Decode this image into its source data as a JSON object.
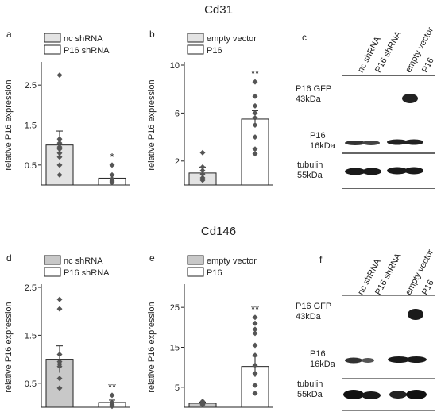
{
  "sections": [
    {
      "title": "Cd31"
    },
    {
      "title": "Cd146"
    }
  ],
  "chart_data": [
    {
      "panel": "a",
      "type": "bar",
      "ylabel": "relative P16 expression",
      "ylim": [
        0,
        3.0
      ],
      "yticks": [
        0.5,
        1.5,
        2.5
      ],
      "bar_fills": [
        "#e3e3e3",
        "#ffffff"
      ],
      "series": [
        {
          "name": "nc shRNA",
          "mean": 1.0,
          "error": 0.35,
          "points": [
            2.75,
            1.15,
            1.05,
            0.95,
            0.9,
            0.8,
            0.7,
            0.5,
            0.25
          ]
        },
        {
          "name": "P16 shRNA",
          "mean": 0.17,
          "error": 0.08,
          "points": [
            0.5,
            0.25,
            0.15,
            0.1,
            0.06
          ]
        }
      ],
      "significance": [
        "",
        "*"
      ]
    },
    {
      "panel": "b",
      "type": "bar",
      "ylabel": "relative P16 expression",
      "ylim": [
        0,
        10
      ],
      "yticks": [
        2,
        6,
        10
      ],
      "bar_fills": [
        "#e3e3e3",
        "#ffffff"
      ],
      "series": [
        {
          "name": "empty vector",
          "mean": 1.0,
          "error": 0.5,
          "points": [
            2.7,
            1.5,
            1.2,
            0.9,
            0.6,
            0.4
          ]
        },
        {
          "name": "P16",
          "mean": 5.5,
          "error": 0.7,
          "points": [
            8.6,
            7.4,
            6.6,
            6.0,
            5.6,
            5.0,
            4.0,
            3.0,
            2.6
          ]
        }
      ],
      "significance": [
        "",
        "**"
      ]
    },
    {
      "panel": "d",
      "type": "bar",
      "ylabel": "relative P16 expression",
      "ylim": [
        0,
        2.5
      ],
      "yticks": [
        0.5,
        1.5,
        2.5
      ],
      "bar_fills": [
        "#c8c8c8",
        "#ffffff"
      ],
      "series": [
        {
          "name": "nc shRNA",
          "mean": 1.0,
          "error": 0.28,
          "points": [
            2.25,
            2.05,
            1.1,
            0.95,
            0.9,
            0.85,
            0.6,
            0.4
          ]
        },
        {
          "name": "P16 shRNA",
          "mean": 0.1,
          "error": 0.05,
          "points": [
            0.25,
            0.1,
            0.05,
            0.02
          ]
        }
      ],
      "significance": [
        "",
        "**"
      ]
    },
    {
      "panel": "e",
      "type": "bar",
      "ylabel": "relative P16 expression",
      "ylim": [
        0,
        30
      ],
      "yticks": [
        5,
        15,
        25
      ],
      "bar_fills": [
        "#c8c8c8",
        "#ffffff"
      ],
      "series": [
        {
          "name": "empty vector",
          "mean": 1.0,
          "error": 0.3,
          "points": [
            1.5,
            1.2,
            1.0,
            0.8,
            0.6
          ]
        },
        {
          "name": "P16",
          "mean": 10.2,
          "error": 2.6,
          "points": [
            22.5,
            21.0,
            19.5,
            18.5,
            15.5,
            13.0,
            10.5,
            8.5,
            5.5,
            3.5
          ]
        }
      ],
      "significance": [
        "",
        "**"
      ]
    }
  ],
  "blots": [
    {
      "panel": "c",
      "lanes": [
        "nc shRNA",
        "P16 shRNA",
        "empty vector",
        "P16"
      ],
      "rows": [
        {
          "label": "P16 GFP",
          "size": "43kDa"
        },
        {
          "label": "P16",
          "size": "16kDa"
        },
        {
          "label": "tubulin",
          "size": "55kDa"
        }
      ]
    },
    {
      "panel": "f",
      "lanes": [
        "nc shRNA",
        "P16 shRNA",
        "empty vector",
        "P16"
      ],
      "rows": [
        {
          "label": "P16 GFP",
          "size": "43kDa"
        },
        {
          "label": "P16",
          "size": "16kDa"
        },
        {
          "label": "tubulin",
          "size": "55kDa"
        }
      ]
    }
  ]
}
